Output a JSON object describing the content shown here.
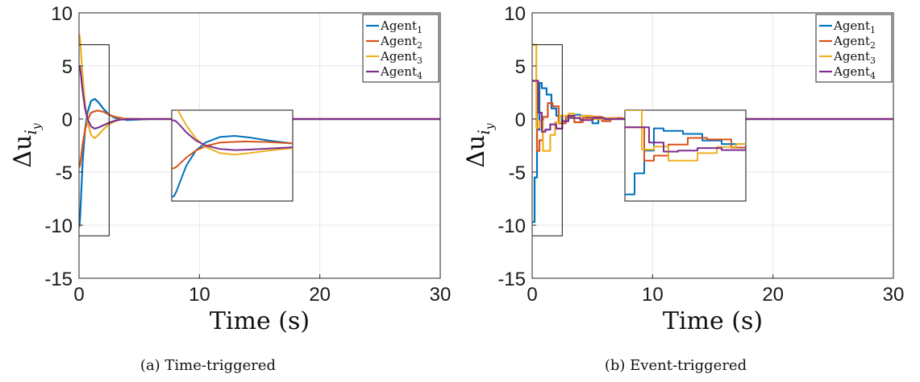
{
  "figure": {
    "colors": {
      "agent1": "#0072BD",
      "agent2": "#D95319",
      "agent3": "#EDB120",
      "agent4": "#7E2F8E"
    }
  },
  "chart_data": [
    {
      "type": "line",
      "caption": "(a) Time-triggered",
      "xlabel": "Time (s)",
      "ylabel_base": "Δu",
      "ylabel_sub": "i",
      "ylabel_subsub": "y",
      "xlim": [
        0,
        30
      ],
      "ylim": [
        -15,
        10
      ],
      "xticks": [
        "0",
        "10",
        "20",
        "30"
      ],
      "yticks": [
        "10",
        "5",
        "0",
        "-5",
        "-10",
        "-15"
      ],
      "grid": true,
      "legend_position": "top-right",
      "zoom_box": {
        "x": [
          0,
          2.5
        ],
        "y": [
          -11,
          7
        ]
      },
      "series": [
        {
          "name": "Agent",
          "sub": "1",
          "color": "#0072BD",
          "x": [
            0,
            0.05,
            0.1,
            0.2,
            0.3,
            0.5,
            0.7,
            1.0,
            1.3,
            1.6,
            2.0,
            2.5,
            3.0,
            3.5,
            4.0,
            5.0,
            6.0,
            8.0,
            30
          ],
          "y": [
            -10.2,
            -10,
            -9,
            -6.5,
            -4,
            -1,
            0.6,
            1.7,
            1.9,
            1.6,
            1.0,
            0.4,
            0.1,
            0,
            -0.1,
            -0.05,
            0,
            0,
            0
          ]
        },
        {
          "name": "Agent",
          "sub": "2",
          "color": "#D95319",
          "x": [
            0,
            0.05,
            0.1,
            0.2,
            0.3,
            0.5,
            0.7,
            1.0,
            1.5,
            2.0,
            2.5,
            3.0,
            3.5,
            4.0,
            5.0,
            6.0,
            8.0,
            30
          ],
          "y": [
            -4.5,
            -4.5,
            -4.2,
            -3.3,
            -2.4,
            -1,
            -0.1,
            0.6,
            0.8,
            0.7,
            0.4,
            0.2,
            0.1,
            0,
            0,
            0,
            0,
            0
          ]
        },
        {
          "name": "Agent",
          "sub": "3",
          "color": "#EDB120",
          "x": [
            0,
            0.05,
            0.1,
            0.2,
            0.3,
            0.5,
            0.7,
            1.0,
            1.3,
            1.6,
            2.0,
            2.5,
            3.0,
            3.5,
            4.0,
            5.0,
            6.0,
            8.0,
            30
          ],
          "y": [
            8,
            7.9,
            7.4,
            5.7,
            4,
            1.4,
            -0.3,
            -1.5,
            -1.8,
            -1.5,
            -1.0,
            -0.5,
            -0.2,
            0,
            0.05,
            0,
            0,
            0,
            0
          ]
        },
        {
          "name": "Agent",
          "sub": "4",
          "color": "#7E2F8E",
          "x": [
            0,
            0.05,
            0.1,
            0.2,
            0.3,
            0.5,
            0.7,
            1.0,
            1.3,
            1.6,
            2.0,
            2.5,
            3.0,
            3.5,
            4.0,
            5.0,
            6.0,
            8.0,
            30
          ],
          "y": [
            5,
            5,
            4.7,
            3.7,
            2.6,
            1,
            0,
            -0.7,
            -0.9,
            -0.8,
            -0.6,
            -0.35,
            -0.15,
            -0.05,
            0,
            0,
            0,
            0,
            0
          ]
        }
      ]
    },
    {
      "type": "line",
      "caption": "(b) Event-triggered",
      "xlabel": "Time (s)",
      "ylabel_base": "Δu",
      "ylabel_sub": "i",
      "ylabel_subsub": "y",
      "xlim": [
        0,
        30
      ],
      "ylim": [
        -15,
        10
      ],
      "xticks": [
        "0",
        "10",
        "20",
        "30"
      ],
      "yticks": [
        "10",
        "5",
        "0",
        "-5",
        "-10",
        "-15"
      ],
      "grid": true,
      "legend_position": "top-right",
      "zoom_box": {
        "x": [
          0,
          2.5
        ],
        "y": [
          -11,
          7
        ]
      },
      "series": [
        {
          "name": "Agent",
          "sub": "1",
          "color": "#0072BD",
          "step": true,
          "x": [
            0,
            0.2,
            0.4,
            0.6,
            0.8,
            1.2,
            1.6,
            2.0,
            2.5,
            3.0,
            3.5,
            4.0,
            4.5,
            5.0,
            5.5,
            6.0,
            7.0,
            30
          ],
          "y": [
            -9.7,
            -5.5,
            -1,
            3.4,
            2.9,
            2.3,
            1.0,
            0.3,
            -0.2,
            0.1,
            0.4,
            0.3,
            0.2,
            -0.4,
            0.1,
            0,
            0,
            0
          ]
        },
        {
          "name": "Agent",
          "sub": "2",
          "color": "#D95319",
          "step": true,
          "x": [
            0,
            0.1,
            0.4,
            0.6,
            0.9,
            1.3,
            1.7,
            2.2,
            2.8,
            3.5,
            4.2,
            5.0,
            5.8,
            6.5,
            7.5,
            30
          ],
          "y": [
            3.6,
            3.6,
            -3,
            -2,
            0.2,
            1.5,
            1.2,
            -0.4,
            0.2,
            -0.3,
            0.1,
            0.2,
            -0.2,
            0.1,
            0,
            0
          ]
        },
        {
          "name": "Agent",
          "sub": "3",
          "color": "#EDB120",
          "step": true,
          "x": [
            0,
            0.2,
            0.35,
            0.6,
            0.9,
            1.2,
            1.5,
            1.9,
            2.3,
            3.0,
            3.5,
            4.0,
            5.0,
            6.0,
            7.0,
            30
          ],
          "y": [
            7,
            7,
            -0.8,
            -0.2,
            -3,
            -3,
            -1.5,
            -0.3,
            0.3,
            0.5,
            0.1,
            0.3,
            0,
            0.1,
            0,
            0
          ]
        },
        {
          "name": "Agent",
          "sub": "4",
          "color": "#7E2F8E",
          "step": true,
          "x": [
            0,
            0.1,
            0.5,
            0.8,
            1.1,
            1.5,
            2.0,
            2.5,
            3.0,
            3.5,
            4.0,
            5.0,
            6.0,
            7.0,
            30
          ],
          "y": [
            3.6,
            3.6,
            0.6,
            -1.2,
            -1.0,
            -0.5,
            -0.9,
            -0.2,
            0.3,
            0.1,
            -0.1,
            0.1,
            0,
            0,
            0
          ]
        }
      ]
    }
  ]
}
